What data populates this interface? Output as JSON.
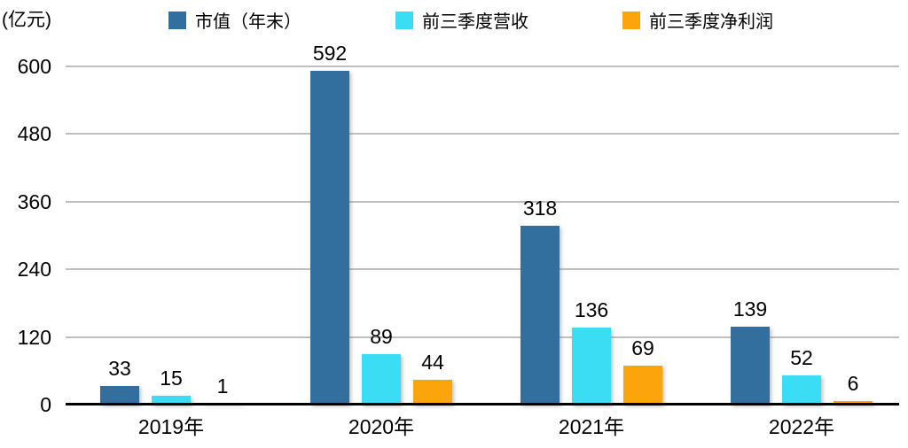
{
  "chart_data": {
    "type": "bar",
    "title": "",
    "ylabel": "(亿元)",
    "xlabel": "",
    "categories": [
      "2019年",
      "2020年",
      "2021年",
      "2022年"
    ],
    "series": [
      {
        "name": "市值（年末）",
        "color": "#336F9E",
        "values": [
          33,
          592,
          318,
          139
        ]
      },
      {
        "name": "前三季度营收",
        "color": "#3BDDF4",
        "values": [
          15,
          89,
          136,
          52
        ]
      },
      {
        "name": "前三季度净利润",
        "color": "#FCA40B",
        "values": [
          1,
          44,
          69,
          6
        ]
      }
    ],
    "ylim": [
      0,
      600
    ],
    "yticks": [
      0,
      120,
      240,
      360,
      480,
      600
    ],
    "grid": true,
    "legend_position": "top",
    "colors": {
      "gridline": "#BFBFBF",
      "axis_line": "#000000",
      "text": "#000000",
      "background": "#FFFFFF"
    }
  }
}
